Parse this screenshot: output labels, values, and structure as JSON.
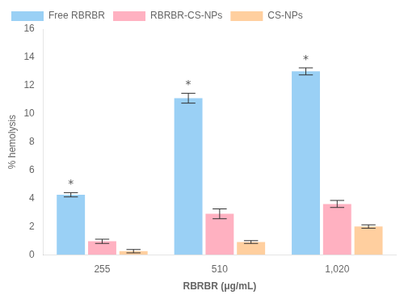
{
  "chart_data": {
    "type": "bar",
    "categories": [
      "255",
      "510",
      "1,020"
    ],
    "series": [
      {
        "name": "Free RBRBR",
        "values": [
          4.25,
          11.1,
          13.0
        ],
        "errors": [
          0.15,
          0.35,
          0.25
        ]
      },
      {
        "name": "RBRBR-CS-NPs",
        "values": [
          0.95,
          2.9,
          3.6
        ],
        "errors": [
          0.15,
          0.35,
          0.25
        ]
      },
      {
        "name": "CS-NPs",
        "values": [
          0.25,
          0.9,
          2.0
        ],
        "errors": [
          0.12,
          0.1,
          0.12
        ]
      }
    ],
    "xlabel": "RBRBR (μg/mL)",
    "ylabel": "% hemolysis",
    "ylim": [
      0,
      16
    ],
    "yticks": [
      0,
      2,
      4,
      6,
      8,
      10,
      12,
      14,
      16
    ],
    "annotations": [
      {
        "text": "*",
        "series": "Free RBRBR",
        "category": "255"
      },
      {
        "text": "*",
        "series": "Free RBRBR",
        "category": "510"
      },
      {
        "text": "*",
        "series": "Free RBRBR",
        "category": "1,020"
      }
    ],
    "grid": false,
    "legend": "upper left"
  }
}
